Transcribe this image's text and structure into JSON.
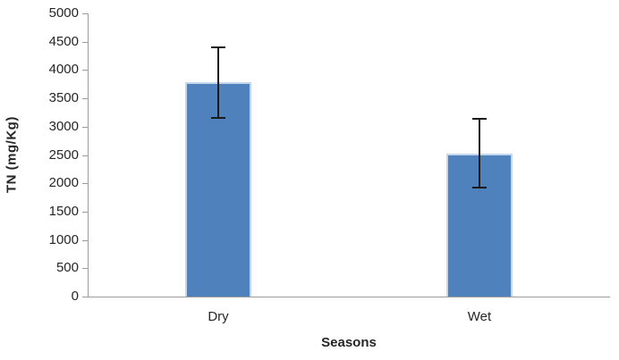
{
  "chart_data": {
    "type": "bar",
    "title": "",
    "xlabel": "Seasons",
    "ylabel": "TN (mg/Kg)",
    "categories": [
      "Dry",
      "Wet"
    ],
    "values": [
      3790,
      2530
    ],
    "error_high": [
      4420,
      3160
    ],
    "error_low": [
      3160,
      1920
    ],
    "ylim": [
      0,
      5000
    ],
    "ytick_step": 500,
    "ytick_labels": [
      "0",
      "500",
      "1000",
      "1500",
      "2000",
      "2500",
      "3000",
      "3500",
      "4000",
      "4500",
      "5000"
    ],
    "grid": false,
    "legend_position": "none",
    "bar_color": "#4f81bd",
    "bar_border_color": "#c4d6ea",
    "axis_color": "#9c9c9c",
    "error_bar_color": "#1a1a1a",
    "text_color": "#262626",
    "background_color": "#ffffff"
  }
}
